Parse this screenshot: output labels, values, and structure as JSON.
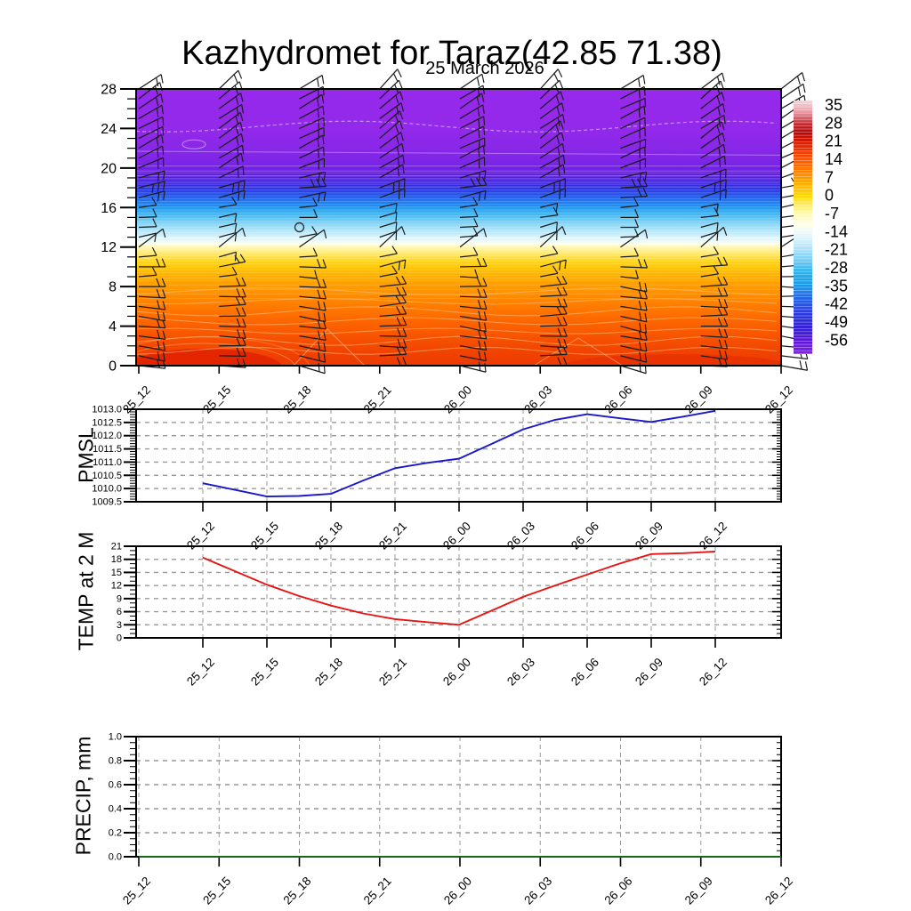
{
  "title": "Kazhydromet for Taraz(42.85 71.38)",
  "subtitle": "25 March 2026",
  "axis_titles": {
    "pmsl": "PMSL",
    "temp": "TEMP at 2 M",
    "precip": "PRECIP, mm"
  },
  "time_labels": [
    "25_12",
    "25_15",
    "25_18",
    "25_21",
    "26_00",
    "26_03",
    "26_06",
    "26_09",
    "26_12"
  ],
  "chart_data": [
    {
      "type": "heatmap",
      "name": "temperature height-time cross-section with wind barbs",
      "x_tick_labels": [
        "25_12",
        "25_15",
        "25_18",
        "25_21",
        "26_00",
        "26_03",
        "26_06",
        "26_09",
        "26_12"
      ],
      "y_range": [
        0,
        28
      ],
      "y_ticks": [
        0,
        4,
        8,
        12,
        16,
        20,
        24,
        28
      ],
      "colorbar_tick_labels": [
        "35",
        "28",
        "21",
        "14",
        "7",
        "0",
        "-7",
        "-14",
        "-21",
        "-28",
        "-35",
        "-42",
        "-49",
        "-56"
      ],
      "temp_profile_by_level": [
        [
          0,
          19
        ],
        [
          2,
          17
        ],
        [
          4,
          14
        ],
        [
          6,
          10
        ],
        [
          8,
          7
        ],
        [
          10,
          2
        ],
        [
          11,
          -2
        ],
        [
          12,
          -7
        ],
        [
          12.6,
          -12
        ],
        [
          13,
          -16
        ],
        [
          14,
          -21
        ],
        [
          15,
          -25
        ],
        [
          16,
          -29
        ],
        [
          17,
          -36
        ],
        [
          18,
          -44
        ],
        [
          18.6,
          -50
        ],
        [
          19,
          -56
        ],
        [
          20,
          -60
        ],
        [
          28,
          -62
        ]
      ],
      "calm_marker": {
        "time": "25_18",
        "level": 14
      }
    },
    {
      "type": "line",
      "name": "PMSL",
      "ylim": [
        1009.5,
        1013.0
      ],
      "x_start": "25_12",
      "x_step_hours": 1.5,
      "values": [
        1010.2,
        1009.95,
        1009.7,
        1009.72,
        1009.8,
        1010.3,
        1010.77,
        1010.97,
        1011.13,
        1011.68,
        1012.24,
        1012.6,
        1012.81,
        1012.66,
        1012.52,
        1012.72,
        1012.94
      ]
    },
    {
      "type": "line",
      "name": "TEMP at 2 M",
      "ylim": [
        0,
        21
      ],
      "x_start": "25_12",
      "x_step_hours": 1.5,
      "values": [
        18.4,
        15.3,
        12.2,
        9.6,
        7.4,
        5.6,
        4.3,
        3.6,
        3.0,
        6.2,
        9.4,
        12.0,
        14.5,
        17.0,
        19.2,
        19.4,
        19.8
      ]
    },
    {
      "type": "line",
      "name": "PRECIP, mm",
      "ylim": [
        0,
        1
      ],
      "x_start": "25_12",
      "x_step_hours": 3,
      "values": [
        0,
        0,
        0,
        0,
        0,
        0,
        0,
        0,
        0
      ]
    }
  ],
  "panel_ytick_labels": {
    "pmsl": [
      "1013.0",
      "1012.5",
      "1012.0",
      "1011.5",
      "1011.0",
      "1010.5",
      "1010.0",
      "1009.5"
    ],
    "temp": [
      "21",
      "18",
      "15",
      "12",
      "9",
      "6",
      "3",
      "0"
    ],
    "precip": [
      "1.0",
      "0.8",
      "0.6",
      "0.4",
      "0.2",
      "0.0"
    ]
  },
  "style": {
    "pmsl_line": "#1919CC",
    "temp_line": "#E81414",
    "precip_line": "#156B15",
    "barb_color": "#1A1A1A",
    "grid_color": "#999999",
    "cross_fill_stops": [
      [
        28,
        "#9629EC"
      ],
      [
        24,
        "#9329EA"
      ],
      [
        22,
        "#8928E8"
      ],
      [
        20.5,
        "#7B25E6"
      ],
      [
        19.6,
        "#6B20E2"
      ],
      [
        19.0,
        "#5420DE"
      ],
      [
        18.4,
        "#3C28DC"
      ],
      [
        17.8,
        "#2B3BE4"
      ],
      [
        17.2,
        "#2458EC"
      ],
      [
        16.6,
        "#2278F0"
      ],
      [
        16.0,
        "#2298F0"
      ],
      [
        15.4,
        "#3DB4F2"
      ],
      [
        14.8,
        "#68C8F4"
      ],
      [
        14.2,
        "#92DAF7"
      ],
      [
        13.6,
        "#B6E8FA"
      ],
      [
        13.0,
        "#D6F2FC"
      ],
      [
        12.6,
        "#EEFAF9"
      ],
      [
        12.25,
        "#FFFDDE"
      ],
      [
        11.9,
        "#FFF5A8"
      ],
      [
        11.4,
        "#FFEA70"
      ],
      [
        10.9,
        "#FFDE3E"
      ],
      [
        10.4,
        "#FFD112"
      ],
      [
        9.9,
        "#FFC400"
      ],
      [
        9.2,
        "#FFB200"
      ],
      [
        8.2,
        "#FF9E00"
      ],
      [
        7.0,
        "#FF8B00"
      ],
      [
        5.6,
        "#FF7500"
      ],
      [
        4.2,
        "#FC6200"
      ],
      [
        2.8,
        "#F75200"
      ],
      [
        1.4,
        "#F14300"
      ],
      [
        0,
        "#EC3A05"
      ]
    ],
    "colorbar_stops": [
      [
        0.0,
        "#F4D8DC"
      ],
      [
        0.04,
        "#EAA2AE"
      ],
      [
        0.065,
        "#DC6A76"
      ],
      [
        0.089,
        "#C63038"
      ],
      [
        0.125,
        "#B60606"
      ],
      [
        0.161,
        "#D61800"
      ],
      [
        0.197,
        "#EE3600"
      ],
      [
        0.232,
        "#FA5400"
      ],
      [
        0.268,
        "#FF7600"
      ],
      [
        0.303,
        "#FF9600"
      ],
      [
        0.339,
        "#FFBA00"
      ],
      [
        0.375,
        "#FFD800"
      ],
      [
        0.411,
        "#FFEC5E"
      ],
      [
        0.446,
        "#FFF9B2"
      ],
      [
        0.49,
        "#FFFEE9"
      ],
      [
        0.517,
        "#EEFAFA"
      ],
      [
        0.553,
        "#D2F0FB"
      ],
      [
        0.589,
        "#AAE1F8"
      ],
      [
        0.625,
        "#78CFF5"
      ],
      [
        0.66,
        "#3FBBF0"
      ],
      [
        0.696,
        "#1FA9EB"
      ],
      [
        0.732,
        "#1897E7"
      ],
      [
        0.767,
        "#2171E8"
      ],
      [
        0.803,
        "#2653E9"
      ],
      [
        0.839,
        "#2A3AE2"
      ],
      [
        0.874,
        "#2B27DA"
      ],
      [
        0.91,
        "#3C1CD8"
      ],
      [
        0.945,
        "#5A16D6"
      ],
      [
        1.0,
        "#8224E6"
      ]
    ],
    "wind_profile": [
      [
        8,
        2
      ],
      [
        7,
        2
      ],
      [
        7,
        2
      ],
      [
        6,
        2
      ],
      [
        5,
        2
      ],
      [
        4,
        2
      ],
      [
        3,
        2
      ],
      [
        1,
        2
      ],
      [
        0,
        2
      ],
      [
        -3,
        1
      ],
      [
        -5,
        2
      ],
      [
        -8,
        1
      ],
      [
        -38,
        1
      ],
      [
        -12,
        1
      ],
      [
        -8,
        1
      ],
      [
        -6,
        1
      ],
      [
        -10,
        1
      ],
      [
        -14,
        2
      ],
      [
        -12,
        3
      ],
      [
        -20,
        2
      ],
      [
        -26,
        2
      ],
      [
        -28,
        2
      ],
      [
        -30,
        2
      ],
      [
        -32,
        2
      ],
      [
        -30,
        2
      ],
      [
        -32,
        2
      ],
      [
        -34,
        2
      ],
      [
        -36,
        2
      ],
      [
        -38,
        2
      ]
    ],
    "column_jitter": [
      2,
      -4,
      5,
      -7,
      3,
      -6,
      7,
      -3,
      1
    ],
    "calm_column_index": 2,
    "calm_level": 14
  }
}
